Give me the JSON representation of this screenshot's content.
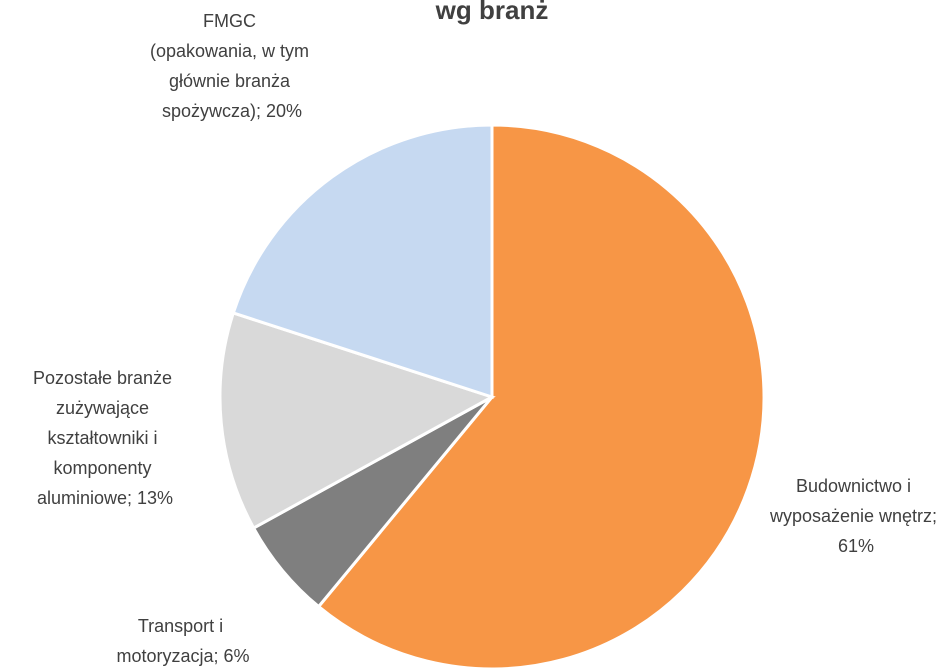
{
  "chart_data": {
    "type": "pie",
    "title": "wg branż",
    "categories": [
      "Budownictwo i wyposażenie wnętrz; 61%",
      "Transport i motoryzacja; 6%",
      "Pozostałe branże zużywające kształtowniki i komponenty aluminiowe; 13%",
      "FMGC (opakowania, w tym głównie branża spożywcza); 20%"
    ],
    "values": [
      61,
      6,
      13,
      20
    ],
    "colors": [
      "#f79646",
      "#7f7f7f",
      "#d9d9d9",
      "#c6d9f1"
    ]
  }
}
